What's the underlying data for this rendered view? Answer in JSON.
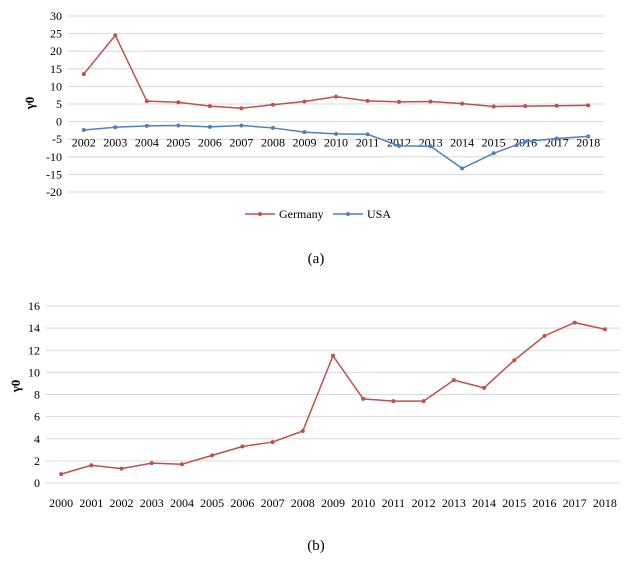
{
  "chart_data": [
    {
      "type": "line",
      "caption": "(a)",
      "ylabel": "γ0",
      "categories": [
        "2002",
        "2003",
        "2004",
        "2005",
        "2006",
        "2007",
        "2008",
        "2009",
        "2010",
        "2011",
        "2012",
        "2013",
        "2014",
        "2015",
        "2016",
        "2017",
        "2018"
      ],
      "ylim": [
        -20,
        30
      ],
      "yticks": [
        30,
        25,
        20,
        15,
        10,
        5,
        0,
        -5,
        -10,
        -15,
        -20
      ],
      "series": [
        {
          "name": "Germany",
          "color": "#c0504d",
          "values": [
            13.5,
            24.5,
            5.8,
            5.5,
            4.4,
            3.8,
            4.8,
            5.7,
            7.1,
            5.9,
            5.6,
            5.7,
            5.1,
            4.3,
            4.4,
            4.5,
            4.6
          ]
        },
        {
          "name": "USA",
          "color": "#4f81bd",
          "values": [
            -2.4,
            -1.6,
            -1.2,
            -1.1,
            -1.5,
            -1.1,
            -1.8,
            -3.0,
            -3.5,
            -3.6,
            -6.9,
            -7.0,
            -13.3,
            -9.0,
            -5.7,
            -4.8,
            -4.2
          ]
        }
      ],
      "legend": "bottom"
    },
    {
      "type": "line",
      "caption": "(b)",
      "ylabel": "γ0",
      "categories": [
        "2000",
        "2001",
        "2002",
        "2003",
        "2004",
        "2005",
        "2006",
        "2007",
        "2008",
        "2009",
        "2010",
        "2011",
        "2012",
        "2013",
        "2014",
        "2015",
        "2016",
        "2017",
        "2018"
      ],
      "ylim": [
        0,
        16
      ],
      "yticks": [
        16,
        14,
        12,
        10,
        8,
        6,
        4,
        2,
        0
      ],
      "series": [
        {
          "name": "",
          "color": "#c0504d",
          "values": [
            0.8,
            1.6,
            1.3,
            1.8,
            1.7,
            2.5,
            3.3,
            3.7,
            4.7,
            11.5,
            7.6,
            7.4,
            7.4,
            9.3,
            8.6,
            11.1,
            13.3,
            14.5,
            13.9
          ]
        }
      ]
    }
  ]
}
